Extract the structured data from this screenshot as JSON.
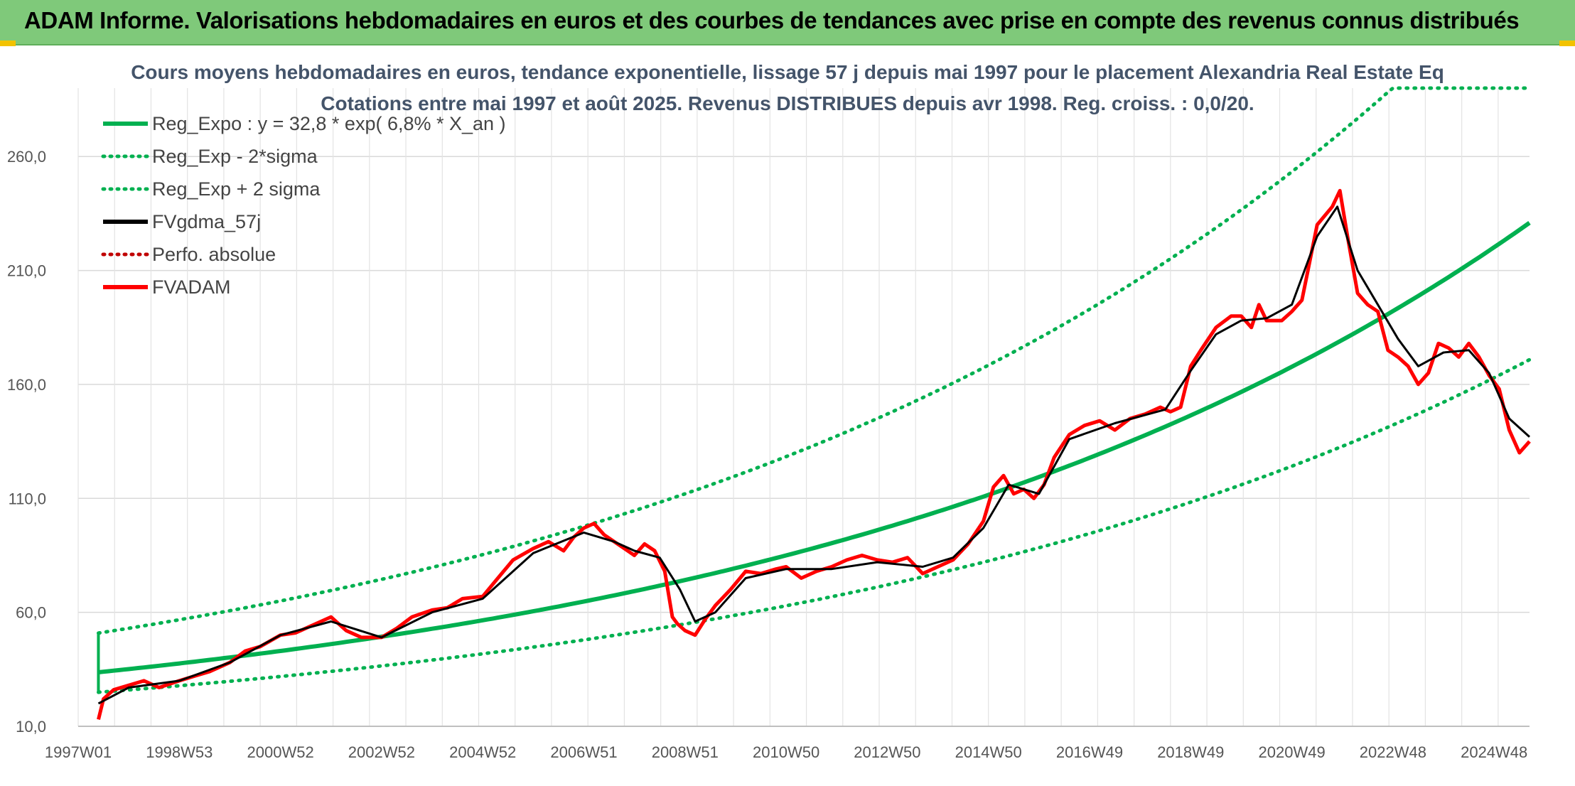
{
  "banner": {
    "title": "ADAM Informe. Valorisations hebdomadaires en euros et des courbes de tendances avec prise en compte des revenus connus distribués"
  },
  "colors": {
    "banner_bg": "#7fc97a",
    "reg_green": "#00b050",
    "price_red": "#ff0000",
    "gdma_black": "#000000",
    "perf_red": "#c00000"
  },
  "chart_data": {
    "type": "line",
    "title_line1": "Cours moyens hebdomadaires en euros, tendance exponentielle, lissage 57 j depuis mai 1997 pour le placement Alexandria Real Estate Eq",
    "title_line2": "Cotations entre mai 1997 et août 2025. Revenus DISTRIBUES depuis avr 1998. Reg. croiss. : 0,0/20.",
    "ylim": [
      10,
      290
    ],
    "yticks": [
      "10,0",
      "60,0",
      "110,0",
      "160,0",
      "210,0",
      "260,0"
    ],
    "ytick_values": [
      10,
      60,
      110,
      160,
      210,
      260
    ],
    "xticks": [
      "1997W01",
      "1998W53",
      "2000W52",
      "2002W52",
      "2004W52",
      "2006W51",
      "2008W51",
      "2010W50",
      "2012W50",
      "2014W50",
      "2016W49",
      "2018W49",
      "2020W49",
      "2022W48",
      "2024W48"
    ],
    "xtick_years": [
      1997.0,
      1999.0,
      2001.0,
      2003.0,
      2005.0,
      2007.0,
      2009.0,
      2011.0,
      2013.0,
      2015.0,
      2017.0,
      2019.0,
      2021.0,
      2023.0,
      2025.0
    ],
    "xlim": [
      1997.0,
      2025.7
    ],
    "grid": true,
    "legend_position": "top-left",
    "legend": [
      {
        "label": "Reg_Expo : y = 32,8 * exp( 6,8% *  X_an )",
        "style": "solid",
        "color": "#00b050"
      },
      {
        "label": "Reg_Exp - 2*sigma",
        "style": "dotted",
        "color": "#00b050"
      },
      {
        "label": "Reg_Exp + 2 sigma",
        "style": "dotted",
        "color": "#00b050"
      },
      {
        "label": "FVgdma_57j",
        "style": "solid",
        "color": "#000000"
      },
      {
        "label": "Perfo. absolue",
        "style": "dotted",
        "color": "#c00000"
      },
      {
        "label": "FVADAM",
        "style": "solid",
        "color": "#ff0000"
      }
    ],
    "regression": {
      "a": 32.8,
      "rate": 0.068,
      "start_year": 1997.4
    },
    "series": [
      {
        "name": "FVADAM",
        "x": [
          1997.4,
          1997.5,
          1997.7,
          1998.0,
          1998.3,
          1998.6,
          1999.0,
          1999.3,
          1999.6,
          2000.0,
          2000.3,
          2000.6,
          2001.0,
          2001.3,
          2001.6,
          2002.0,
          2002.3,
          2002.6,
          2003.0,
          2003.3,
          2003.6,
          2004.0,
          2004.3,
          2004.6,
          2005.0,
          2005.3,
          2005.6,
          2006.0,
          2006.3,
          2006.6,
          2006.8,
          2007.0,
          2007.2,
          2007.4,
          2007.6,
          2007.8,
          2008.0,
          2008.2,
          2008.4,
          2008.6,
          2008.75,
          2008.85,
          2009.0,
          2009.2,
          2009.4,
          2009.6,
          2009.9,
          2010.2,
          2010.5,
          2010.8,
          2011.0,
          2011.3,
          2011.6,
          2011.9,
          2012.2,
          2012.5,
          2012.8,
          2013.1,
          2013.4,
          2013.7,
          2014.0,
          2014.3,
          2014.6,
          2014.9,
          2015.1,
          2015.3,
          2015.5,
          2015.7,
          2015.9,
          2016.1,
          2016.3,
          2016.6,
          2016.9,
          2017.2,
          2017.5,
          2017.8,
          2018.1,
          2018.4,
          2018.6,
          2018.8,
          2019.0,
          2019.2,
          2019.5,
          2019.8,
          2020.0,
          2020.2,
          2020.35,
          2020.5,
          2020.8,
          2021.0,
          2021.2,
          2021.5,
          2021.8,
          2021.95,
          2022.1,
          2022.3,
          2022.5,
          2022.7,
          2022.9,
          2023.1,
          2023.3,
          2023.5,
          2023.7,
          2023.9,
          2024.1,
          2024.3,
          2024.5,
          2024.7,
          2024.9,
          2025.1,
          2025.3,
          2025.5,
          2025.7
        ],
        "values": [
          13,
          22,
          26,
          28,
          30,
          27,
          30,
          32,
          34,
          38,
          43,
          45,
          50,
          51,
          54,
          58,
          52,
          49,
          49,
          53,
          58,
          61,
          62,
          66,
          67,
          75,
          83,
          88,
          91,
          87,
          93,
          97,
          99,
          94,
          91,
          88,
          85,
          90,
          87,
          78,
          58,
          55,
          52,
          50,
          57,
          63,
          70,
          78,
          77,
          79,
          80,
          75,
          78,
          80,
          83,
          85,
          83,
          82,
          84,
          77,
          80,
          83,
          90,
          100,
          115,
          120,
          112,
          114,
          110,
          116,
          128,
          138,
          142,
          144,
          140,
          145,
          147,
          150,
          148,
          150,
          168,
          175,
          185,
          190,
          190,
          185,
          195,
          188,
          188,
          192,
          197,
          230,
          238,
          245,
          225,
          200,
          195,
          192,
          175,
          172,
          168,
          160,
          165,
          178,
          176,
          172,
          178,
          172,
          164,
          158,
          140,
          130,
          135
        ]
      },
      {
        "name": "FVgdma_57j",
        "x": [
          1997.4,
          1998.0,
          1999.0,
          2000.0,
          2001.0,
          2002.0,
          2003.0,
          2004.0,
          2005.0,
          2006.0,
          2007.0,
          2007.6,
          2008.0,
          2008.5,
          2008.9,
          2009.2,
          2009.6,
          2010.2,
          2011.0,
          2011.9,
          2012.8,
          2013.7,
          2014.3,
          2014.9,
          2015.4,
          2016.0,
          2016.6,
          2017.5,
          2018.5,
          2019.0,
          2019.5,
          2020.0,
          2020.5,
          2021.0,
          2021.5,
          2021.9,
          2022.3,
          2022.7,
          2023.1,
          2023.5,
          2024.0,
          2024.5,
          2024.9,
          2025.3,
          2025.7
        ],
        "values": [
          20,
          27,
          30,
          38,
          50,
          56,
          49,
          60,
          66,
          86,
          95,
          91,
          87,
          84,
          70,
          56,
          60,
          75,
          79,
          79,
          82,
          80,
          84,
          97,
          116,
          112,
          136,
          143,
          149,
          166,
          182,
          188,
          189,
          195,
          225,
          238,
          210,
          195,
          180,
          168,
          174,
          175,
          165,
          145,
          137
        ]
      }
    ]
  }
}
